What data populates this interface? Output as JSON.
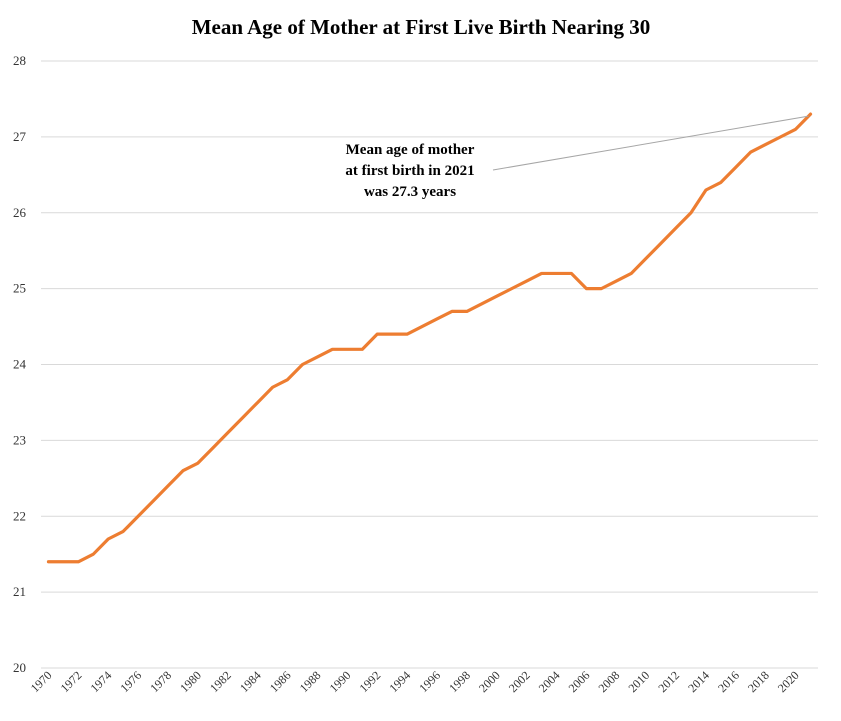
{
  "chart_data": {
    "type": "line",
    "title": "Mean Age of Mother at First Live Birth Nearing 30",
    "xlabel": "",
    "ylabel": "",
    "ylim": [
      20,
      28
    ],
    "yticks": [
      "20",
      "21",
      "22",
      "23",
      "24",
      "25",
      "26",
      "27",
      "28"
    ],
    "xtick_labels": [
      "1970",
      "1972",
      "1974",
      "1976",
      "1978",
      "1980",
      "1982",
      "1984",
      "1986",
      "1988",
      "1990",
      "1992",
      "1994",
      "1996",
      "1998",
      "2000",
      "2002",
      "2004",
      "2006",
      "2008",
      "2010",
      "2012",
      "2014",
      "2016",
      "2018",
      "2020"
    ],
    "grid": true,
    "legend": "none",
    "line_color": "#ED7D31",
    "series": [
      {
        "x": [
          1970,
          1971,
          1972,
          1973,
          1974,
          1975,
          1976,
          1977,
          1978,
          1979,
          1980,
          1981,
          1982,
          1983,
          1984,
          1985,
          1986,
          1987,
          1988,
          1989,
          1990,
          1991,
          1992,
          1993,
          1994,
          1995,
          1996,
          1997,
          1998,
          1999,
          2000,
          2001,
          2002,
          2003,
          2004,
          2005,
          2006,
          2007,
          2008,
          2009,
          2010,
          2011,
          2012,
          2013,
          2014,
          2015,
          2016,
          2017,
          2018,
          2019,
          2020,
          2021
        ],
        "values": [
          21.4,
          21.4,
          21.4,
          21.5,
          21.7,
          21.8,
          22.0,
          22.2,
          22.4,
          22.6,
          22.7,
          22.9,
          23.1,
          23.3,
          23.5,
          23.7,
          23.8,
          24.0,
          24.1,
          24.2,
          24.2,
          24.2,
          24.4,
          24.4,
          24.4,
          24.5,
          24.6,
          24.7,
          24.7,
          24.8,
          24.9,
          25.0,
          25.1,
          25.2,
          25.2,
          25.2,
          25.0,
          25.0,
          25.1,
          25.2,
          25.4,
          25.6,
          25.8,
          26.0,
          26.3,
          26.4,
          26.6,
          26.8,
          26.9,
          27.0,
          27.1,
          27.3
        ]
      }
    ],
    "annotation": {
      "lines": [
        "Mean age of mother",
        "at first birth in 2021",
        "was 27.3 years"
      ],
      "points_to_x": 2021,
      "points_to_y": 27.3
    }
  }
}
